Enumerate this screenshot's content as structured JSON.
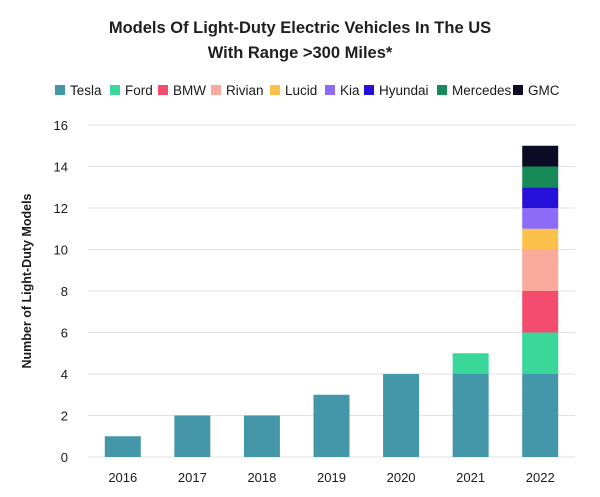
{
  "chart_data": {
    "type": "bar",
    "stacked": true,
    "title": [
      "Models Of Light-Duty Electric Vehicles In The US",
      "With Range >300 Miles*"
    ],
    "xlabel": "",
    "ylabel": "Number of Light-Duty Models",
    "categories": [
      "2016",
      "2017",
      "2018",
      "2019",
      "2020",
      "2021",
      "2022"
    ],
    "ylim": [
      0,
      16
    ],
    "yticks": [
      0,
      2,
      4,
      6,
      8,
      10,
      12,
      14,
      16
    ],
    "grid": true,
    "legend_position": "top",
    "series": [
      {
        "name": "Tesla",
        "color": "#4397a8",
        "values": [
          1,
          2,
          2,
          3,
          4,
          4,
          4
        ]
      },
      {
        "name": "Ford",
        "color": "#3ad79b",
        "values": [
          0,
          0,
          0,
          0,
          0,
          1,
          2
        ]
      },
      {
        "name": "BMW",
        "color": "#f34c6f",
        "values": [
          0,
          0,
          0,
          0,
          0,
          0,
          2
        ]
      },
      {
        "name": "Rivian",
        "color": "#f9aa9d",
        "values": [
          0,
          0,
          0,
          0,
          0,
          0,
          2
        ]
      },
      {
        "name": "Lucid",
        "color": "#fbc14a",
        "values": [
          0,
          0,
          0,
          0,
          0,
          0,
          1
        ]
      },
      {
        "name": "Kia",
        "color": "#8c6cf6",
        "values": [
          0,
          0,
          0,
          0,
          0,
          0,
          1
        ]
      },
      {
        "name": "Hyundai",
        "color": "#2410d8",
        "values": [
          0,
          0,
          0,
          0,
          0,
          0,
          1
        ]
      },
      {
        "name": "Mercedes",
        "color": "#178a58",
        "values": [
          0,
          0,
          0,
          0,
          0,
          0,
          1
        ]
      },
      {
        "name": "GMC",
        "color": "#0b0b24",
        "values": [
          0,
          0,
          0,
          0,
          0,
          0,
          1
        ]
      }
    ]
  }
}
